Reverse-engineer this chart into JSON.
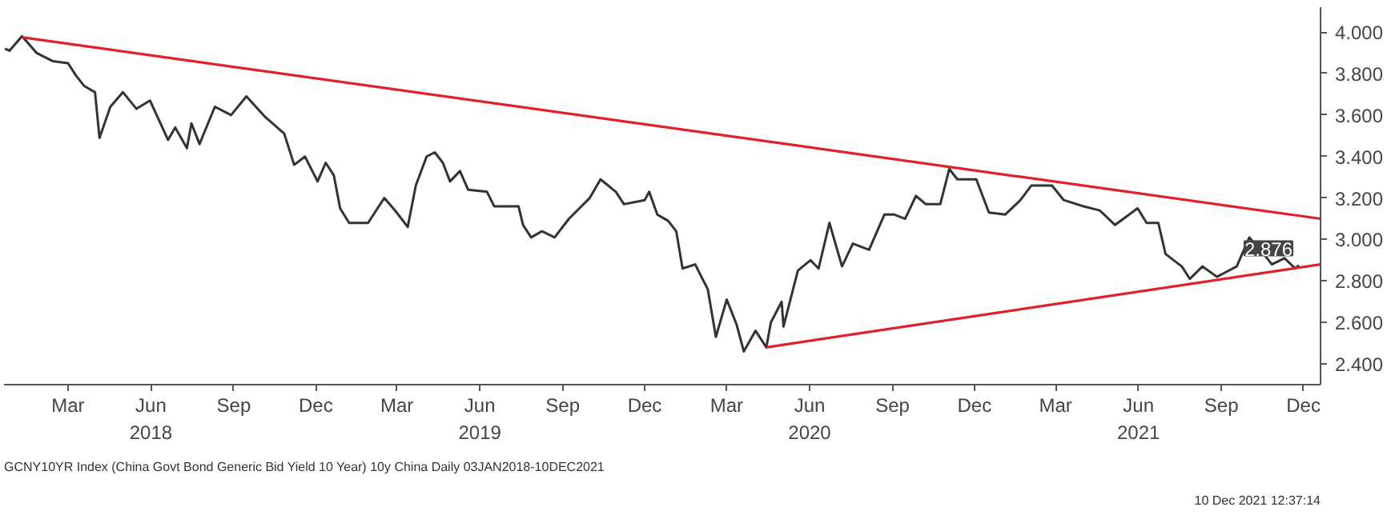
{
  "chart_data": {
    "type": "line",
    "grid": false,
    "line_style": "solid",
    "marker": "none",
    "series": [
      {
        "color": "#333333",
        "x": [
          "2018-01-04",
          "2018-01-09",
          "2018-01-23",
          "2018-02-08",
          "2018-02-26",
          "2018-03-15",
          "2018-03-24",
          "2018-04-02",
          "2018-04-14",
          "2018-04-19",
          "2018-05-01",
          "2018-05-15",
          "2018-05-30",
          "2018-06-14",
          "2018-07-04",
          "2018-07-12",
          "2018-07-25",
          "2018-07-30",
          "2018-08-08",
          "2018-08-25",
          "2018-09-12",
          "2018-09-29",
          "2018-10-20",
          "2018-11-10",
          "2018-11-21",
          "2018-12-03",
          "2018-12-17",
          "2018-12-26",
          "2019-01-04",
          "2019-01-11",
          "2019-01-21",
          "2019-02-11",
          "2019-03-01",
          "2019-03-13",
          "2019-03-27",
          "2019-04-05",
          "2019-04-17",
          "2019-04-26",
          "2019-05-05",
          "2019-05-13",
          "2019-05-24",
          "2019-06-02",
          "2019-06-23",
          "2019-07-01",
          "2019-07-28",
          "2019-08-02",
          "2019-08-11",
          "2019-08-23",
          "2019-09-06",
          "2019-09-22",
          "2019-10-15",
          "2019-10-27",
          "2019-11-13",
          "2019-11-22",
          "2019-12-15",
          "2019-12-20",
          "2019-12-29",
          "2020-01-10",
          "2020-01-19",
          "2020-01-26",
          "2020-02-09",
          "2020-02-23",
          "2020-03-03",
          "2020-03-15",
          "2020-03-26",
          "2020-04-03",
          "2020-04-16",
          "2020-04-28",
          "2020-05-03",
          "2020-05-15",
          "2020-05-17",
          "2020-06-02",
          "2020-06-16",
          "2020-06-25",
          "2020-07-07",
          "2020-07-21",
          "2020-08-02",
          "2020-08-20",
          "2020-09-06",
          "2020-09-17",
          "2020-09-29",
          "2020-10-11",
          "2020-10-22",
          "2020-11-07",
          "2020-11-17",
          "2020-11-26",
          "2020-12-17",
          "2020-12-31",
          "2021-01-18",
          "2021-02-04",
          "2021-02-16",
          "2021-03-11",
          "2021-03-24",
          "2021-04-15",
          "2021-05-03",
          "2021-05-20",
          "2021-06-14",
          "2021-06-24",
          "2021-07-07",
          "2021-07-15",
          "2021-08-02",
          "2021-08-11",
          "2021-08-25",
          "2021-09-10",
          "2021-10-02",
          "2021-10-16",
          "2021-11-01",
          "2021-11-10",
          "2021-11-24",
          "2021-12-06",
          "2021-12-10"
        ],
        "values": [
          3.92,
          3.91,
          3.98,
          3.9,
          3.86,
          3.85,
          3.79,
          3.74,
          3.71,
          3.49,
          3.64,
          3.71,
          3.63,
          3.67,
          3.48,
          3.54,
          3.44,
          3.56,
          3.46,
          3.64,
          3.6,
          3.69,
          3.59,
          3.51,
          3.36,
          3.4,
          3.28,
          3.37,
          3.31,
          3.15,
          3.08,
          3.08,
          3.2,
          3.14,
          3.06,
          3.26,
          3.4,
          3.42,
          3.37,
          3.28,
          3.33,
          3.24,
          3.23,
          3.16,
          3.16,
          3.07,
          3.01,
          3.04,
          3.01,
          3.1,
          3.2,
          3.29,
          3.23,
          3.17,
          3.19,
          3.23,
          3.12,
          3.09,
          3.04,
          2.86,
          2.88,
          2.76,
          2.53,
          2.71,
          2.59,
          2.46,
          2.56,
          2.48,
          2.6,
          2.7,
          2.58,
          2.85,
          2.9,
          2.86,
          3.08,
          2.87,
          2.98,
          2.95,
          3.12,
          3.12,
          3.1,
          3.21,
          3.17,
          3.17,
          3.34,
          3.29,
          3.29,
          3.13,
          3.12,
          3.19,
          3.26,
          3.26,
          3.19,
          3.16,
          3.14,
          3.07,
          3.15,
          3.08,
          3.08,
          2.93,
          2.87,
          2.81,
          2.87,
          2.82,
          2.87,
          3.01,
          2.93,
          2.88,
          2.91,
          2.86,
          2.876
        ]
      },
      {
        "type": "line",
        "color": "#e0202a",
        "x": [
          "2018-01-23",
          "2022-01-03"
        ],
        "values": [
          3.975,
          3.1
        ]
      },
      {
        "type": "line",
        "color": "#e0202a",
        "x": [
          "2020-04-28",
          "2022-01-03"
        ],
        "values": [
          2.48,
          2.88
        ]
      }
    ],
    "xlim": [
      "2018-01-03",
      "2022-01-03"
    ],
    "xticks": [
      {
        "value": "2018-03-15",
        "label": "Mar"
      },
      {
        "value": "2018-06-15",
        "label": "Jun\n2018"
      },
      {
        "value": "2018-09-15",
        "label": "Sep"
      },
      {
        "value": "2018-12-15",
        "label": "Dec"
      },
      {
        "value": "2019-03-15",
        "label": "Mar"
      },
      {
        "value": "2019-06-15",
        "label": "Jun\n2019"
      },
      {
        "value": "2019-09-15",
        "label": "Sep"
      },
      {
        "value": "2019-12-15",
        "label": "Dec"
      },
      {
        "value": "2020-03-15",
        "label": "Mar"
      },
      {
        "value": "2020-06-15",
        "label": "Jun\n2020"
      },
      {
        "value": "2020-09-15",
        "label": "Sep"
      },
      {
        "value": "2020-12-15",
        "label": "Dec"
      },
      {
        "value": "2021-03-15",
        "label": "Mar"
      },
      {
        "value": "2021-06-15",
        "label": "Jun\n2021"
      },
      {
        "value": "2021-09-15",
        "label": "Sep"
      },
      {
        "value": "2021-12-15",
        "label": "Dec"
      }
    ],
    "ylim": [
      2.3,
      4.12
    ],
    "yticks": [
      {
        "value": 2.4,
        "label": "2.400"
      },
      {
        "value": 2.6,
        "label": "2.600"
      },
      {
        "value": 2.8,
        "label": "2.800"
      },
      {
        "value": 3.0,
        "label": "3.000"
      },
      {
        "value": 3.2,
        "label": "3.200"
      },
      {
        "value": 3.4,
        "label": "3.400"
      },
      {
        "value": 3.6,
        "label": "3.600"
      },
      {
        "value": 3.8,
        "label": "3.800"
      },
      {
        "value": 4.0,
        "label": "4.000"
      }
    ],
    "annotations": [
      {
        "text": "2.876",
        "x": "2021-12-10",
        "y": 2.876
      },
      "GCNY10YR Index (China Govt Bond Generic Bid Yield 10 Year) 10y China Daily 03JAN2018-10DEC2021",
      "10 Dec 2021 12:37:14"
    ]
  }
}
